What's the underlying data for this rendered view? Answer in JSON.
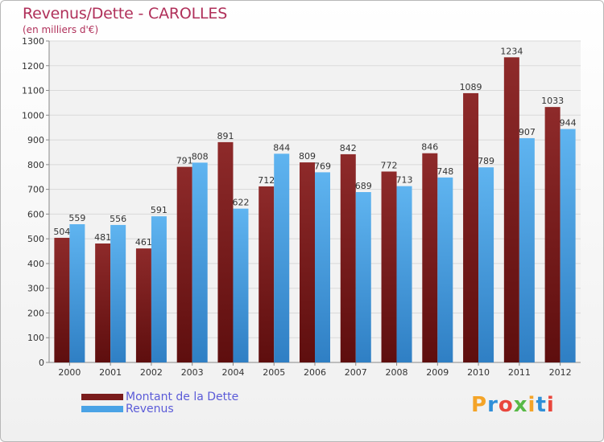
{
  "header": {
    "title": "Revenus/Dette - CAROLLES",
    "subtitle": "(en milliers d'€)"
  },
  "colors": {
    "dette": "#7a1c1c",
    "revenus": "#4aa3e6",
    "title": "#b0305a",
    "legend_text": "#5b5bd8"
  },
  "legend": {
    "items": [
      {
        "label": "Montant de la Dette",
        "color": "#7a1c1c"
      },
      {
        "label": "Revenus",
        "color": "#4aa3e6"
      }
    ]
  },
  "logo": {
    "letters": [
      "P",
      "r",
      "o",
      "x",
      "i",
      "t",
      "i"
    ],
    "colors": [
      "#f4a428",
      "#2f8fd8",
      "#e9463c",
      "#58b947",
      "#f4a428",
      "#2f8fd8",
      "#e9463c"
    ]
  },
  "chart_data": {
    "type": "bar",
    "title": "Revenus/Dette - CAROLLES",
    "ylabel": "(en milliers d'€)",
    "xlabel": "",
    "categories": [
      "2000",
      "2001",
      "2002",
      "2003",
      "2004",
      "2005",
      "2006",
      "2007",
      "2008",
      "2009",
      "2010",
      "2011",
      "2012"
    ],
    "series": [
      {
        "name": "Montant de la Dette",
        "values": [
          504,
          481,
          461,
          791,
          891,
          712,
          809,
          842,
          772,
          846,
          1089,
          1234,
          1033
        ]
      },
      {
        "name": "Revenus",
        "values": [
          559,
          556,
          591,
          808,
          622,
          844,
          769,
          689,
          713,
          748,
          789,
          907,
          944
        ]
      }
    ],
    "ylim": [
      0,
      1300
    ],
    "yticks": [
      0,
      100,
      200,
      300,
      400,
      500,
      600,
      700,
      800,
      900,
      1000,
      1100,
      1200,
      1300
    ],
    "grid": true,
    "legend_position": "bottom-left"
  }
}
